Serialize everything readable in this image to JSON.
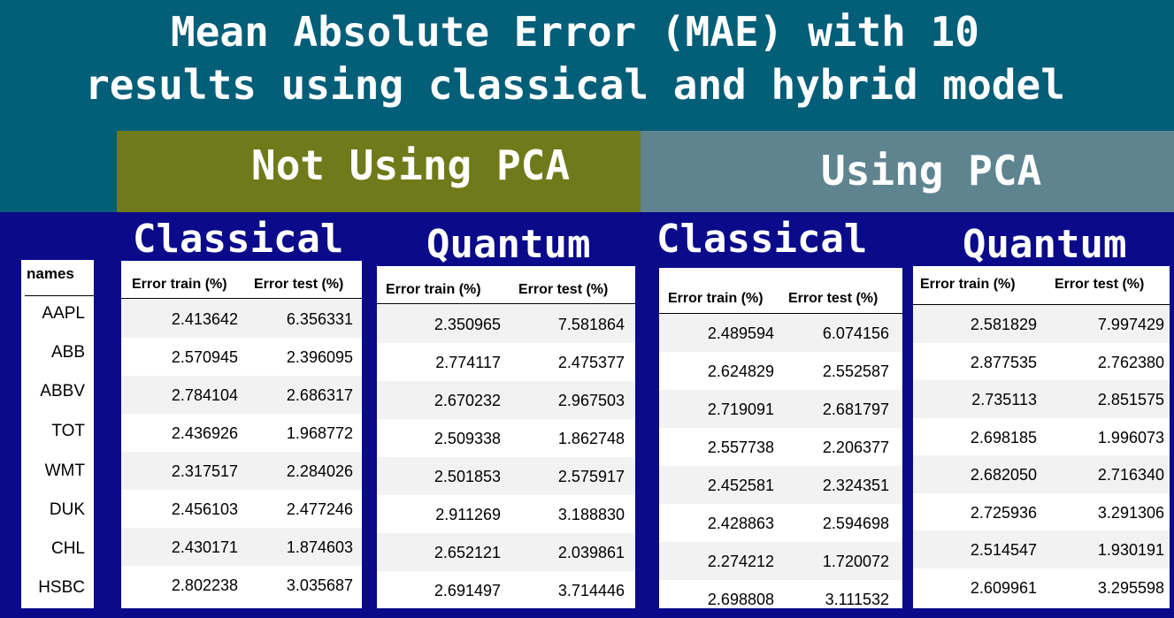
{
  "title": "Mean Absolute Error (MAE) with  10 results using classical and hybrid model",
  "title_lines": [
    "Mean Absolute Error (MAE) with  10",
    "results using classical and hybrid model"
  ],
  "groups": {
    "not_pca": "Not Using PCA",
    "pca": "Using PCA"
  },
  "colors": {
    "title_bg": "#035e78",
    "not_pca_bg": "#6f7b1a",
    "pca_bg": "#5e8490",
    "band_bg": "#0a0a8a"
  },
  "names_header": "names",
  "names": [
    "AAPL",
    "ABB",
    "ABBV",
    "TOT",
    "WMT",
    "DUK",
    "CHL",
    "HSBC"
  ],
  "tables": [
    {
      "group": "Not Using PCA",
      "model": "Classical",
      "columns": [
        "Error train (%)",
        "Error test (%)"
      ],
      "rows": [
        [
          "2.413642",
          "6.356331"
        ],
        [
          "2.570945",
          "2.396095"
        ],
        [
          "2.784104",
          "2.686317"
        ],
        [
          "2.436926",
          "1.968772"
        ],
        [
          "2.317517",
          "2.284026"
        ],
        [
          "2.456103",
          "2.477246"
        ],
        [
          "2.430171",
          "1.874603"
        ],
        [
          "2.802238",
          "3.035687"
        ]
      ]
    },
    {
      "group": "Not Using PCA",
      "model": "Quantum",
      "columns": [
        "Error train (%)",
        "Error test (%)"
      ],
      "rows": [
        [
          "2.350965",
          "7.581864"
        ],
        [
          "2.774117",
          "2.475377"
        ],
        [
          "2.670232",
          "2.967503"
        ],
        [
          "2.509338",
          "1.862748"
        ],
        [
          "2.501853",
          "2.575917"
        ],
        [
          "2.911269",
          "3.188830"
        ],
        [
          "2.652121",
          "2.039861"
        ],
        [
          "2.691497",
          "3.714446"
        ]
      ]
    },
    {
      "group": "Using PCA",
      "model": "Classical",
      "columns": [
        "Error train (%)",
        "Error test (%)"
      ],
      "rows": [
        [
          "2.489594",
          "6.074156"
        ],
        [
          "2.624829",
          "2.552587"
        ],
        [
          "2.719091",
          "2.681797"
        ],
        [
          "2.557738",
          "2.206377"
        ],
        [
          "2.452581",
          "2.324351"
        ],
        [
          "2.428863",
          "2.594698"
        ],
        [
          "2.274212",
          "1.720072"
        ],
        [
          "2.698808",
          "3.111532"
        ]
      ]
    },
    {
      "group": "Using PCA",
      "model": "Quantum",
      "columns": [
        "Error train (%)",
        "Error test (%)"
      ],
      "rows": [
        [
          "2.581829",
          "7.997429"
        ],
        [
          "2.877535",
          "2.762380"
        ],
        [
          "2.735113",
          "2.851575"
        ],
        [
          "2.698185",
          "1.996073"
        ],
        [
          "2.682050",
          "2.716340"
        ],
        [
          "2.725936",
          "3.291306"
        ],
        [
          "2.514547",
          "1.930191"
        ],
        [
          "2.609961",
          "3.295598"
        ]
      ]
    }
  ]
}
